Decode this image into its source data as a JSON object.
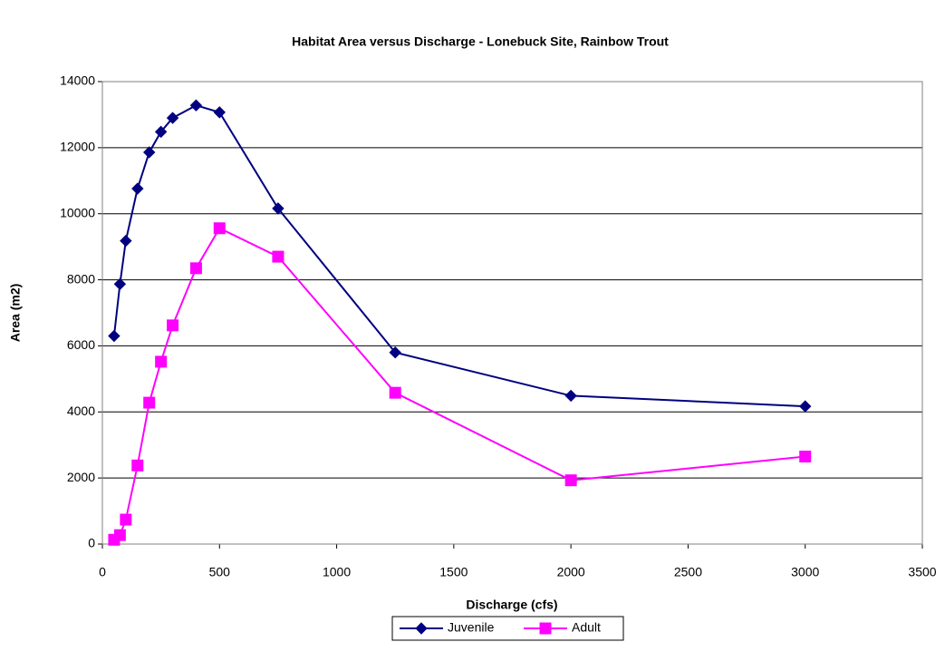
{
  "chart_data": {
    "type": "line",
    "title": "Habitat Area versus Discharge - Lonebuck Site, Rainbow Trout",
    "x_label": "Discharge (cfs)",
    "y_label": "Area (m2)",
    "x": [
      50,
      75,
      100,
      150,
      200,
      250,
      300,
      400,
      500,
      750,
      1250,
      2000,
      3000
    ],
    "series": [
      {
        "name": "Juvenile",
        "color": "#000080",
        "marker": "diamond",
        "values": [
          6300,
          7870,
          9180,
          10760,
          11860,
          12480,
          12900,
          13280,
          13070,
          10160,
          5800,
          4490,
          4170
        ]
      },
      {
        "name": "Adult",
        "color": "#ff00ff",
        "marker": "square",
        "values": [
          130,
          270,
          740,
          2380,
          4280,
          5520,
          6620,
          8350,
          9560,
          8700,
          4580,
          1930,
          2650
        ]
      }
    ],
    "xlim": [
      0,
      3500
    ],
    "xticks": [
      0,
      500,
      1000,
      1500,
      2000,
      2500,
      3000,
      3500
    ],
    "ylim": [
      0,
      14000
    ],
    "yticks": [
      0,
      2000,
      4000,
      6000,
      8000,
      10000,
      12000,
      14000
    ],
    "grid": true,
    "legend": "bottom"
  }
}
